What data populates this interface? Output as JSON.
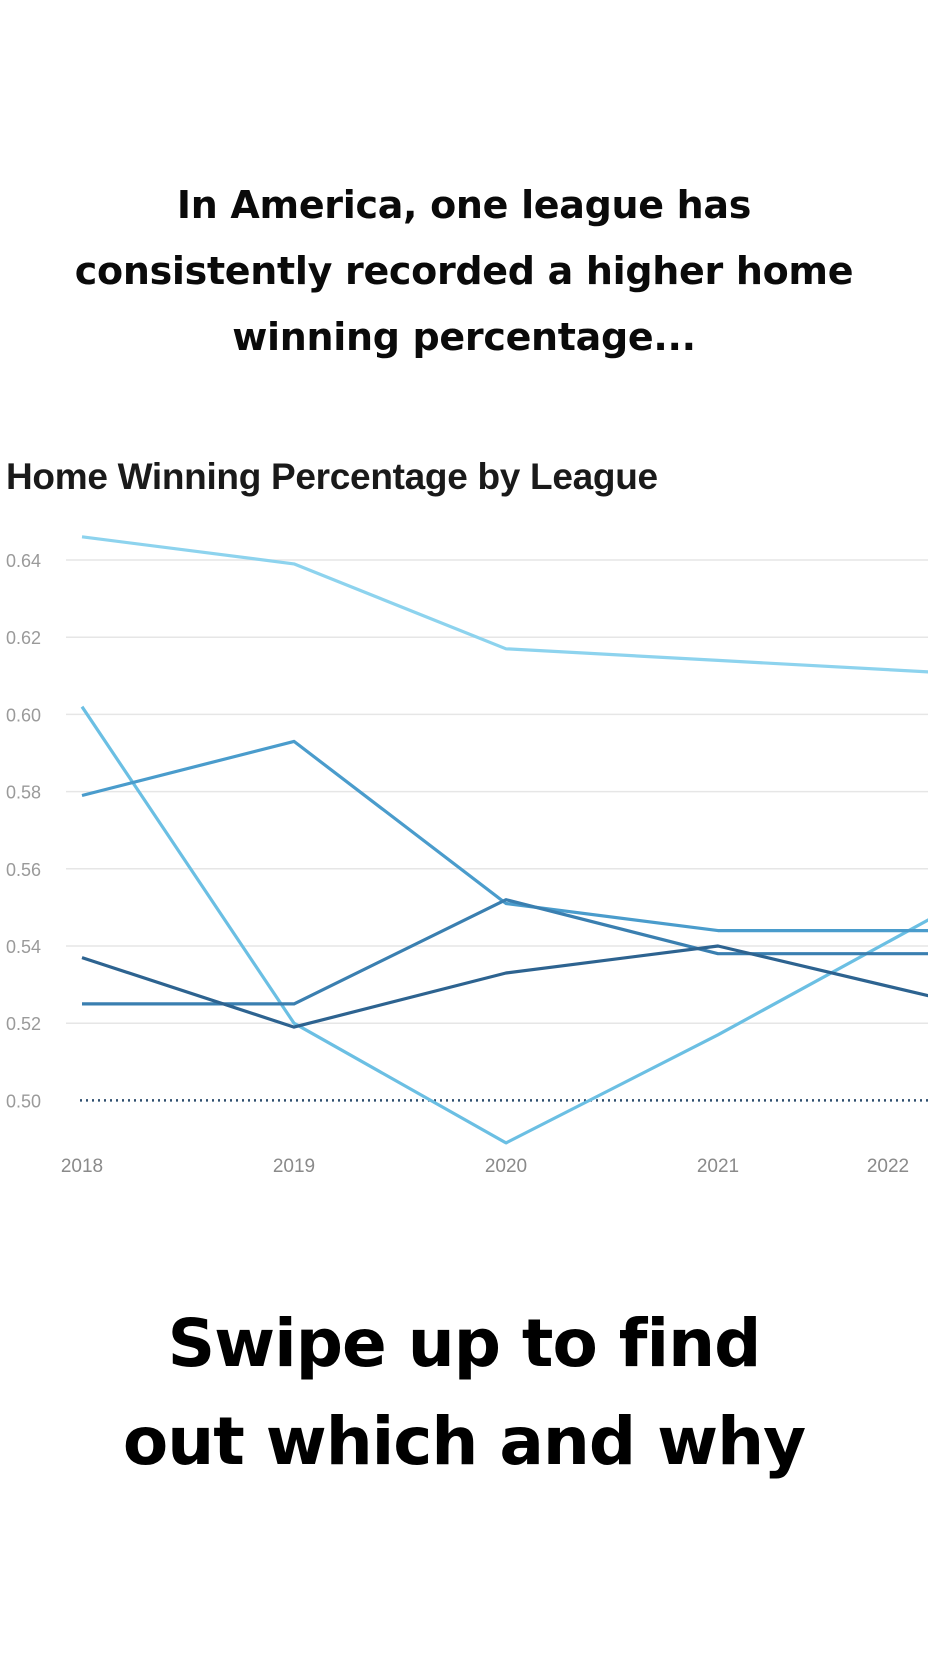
{
  "headline": {
    "line1": "In America, one league has",
    "line2": "consistently recorded a higher home",
    "line3": "winning percentage..."
  },
  "cta": {
    "line1": "Swipe up to find",
    "line2": "out which and why"
  },
  "chart_data": {
    "type": "line",
    "title": "Home Winning Percentage by League",
    "xlabel": "",
    "ylabel": "",
    "x": [
      "2018",
      "2019",
      "2020",
      "2021",
      "2022"
    ],
    "ylim": [
      0.49,
      0.65
    ],
    "yticks": [
      "0.64",
      "0.62",
      "0.60",
      "0.58",
      "0.56",
      "0.54",
      "0.52",
      "0.50"
    ],
    "grid": true,
    "reference_line": {
      "value": 0.5,
      "style": "dotted",
      "color": "#2f4f6f"
    },
    "series": [
      {
        "values": [
          0.646,
          0.639,
          0.617,
          0.614,
          0.611
        ],
        "color": "#8dd3ee"
      },
      {
        "values": [
          0.602,
          0.52,
          0.489,
          0.517,
          0.547
        ],
        "color": "#6bbfe3"
      },
      {
        "values": [
          0.579,
          0.593,
          0.551,
          0.544,
          0.544
        ],
        "color": "#4a9ccc"
      },
      {
        "values": [
          0.525,
          0.525,
          0.552,
          0.538,
          0.538
        ],
        "color": "#3a7fb0"
      },
      {
        "values": [
          0.537,
          0.519,
          0.533,
          0.54,
          0.527
        ],
        "color": "#2d6390"
      }
    ]
  }
}
